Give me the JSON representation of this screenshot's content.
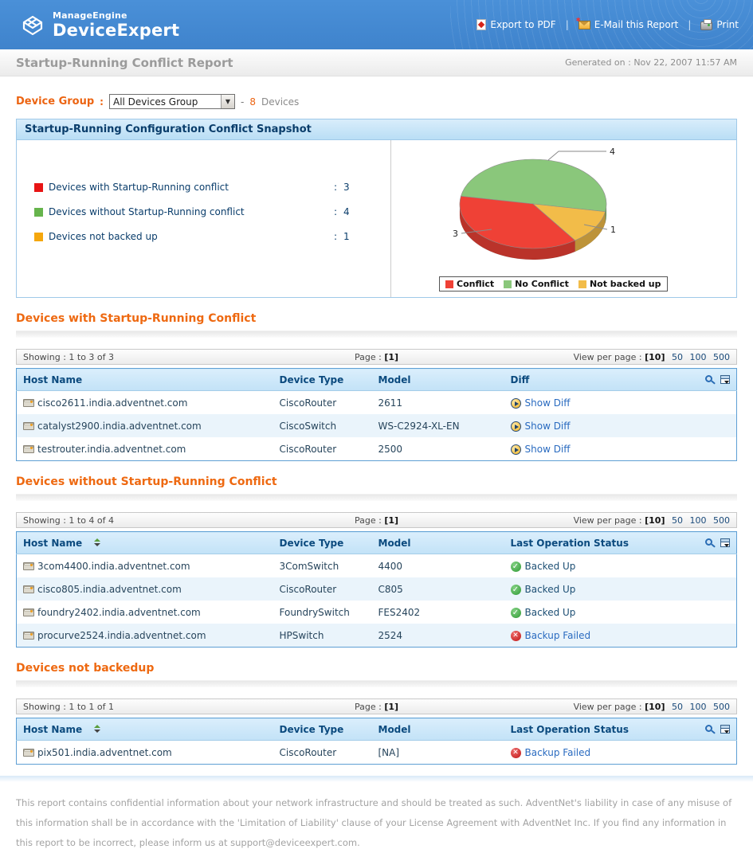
{
  "header": {
    "brand_top": "ManageEngine",
    "brand_name": "DeviceExpert",
    "separator": "|",
    "links": [
      {
        "label": "Export to PDF",
        "icon": "pdf-icon"
      },
      {
        "label": "E-Mail this Report",
        "icon": "email-icon"
      },
      {
        "label": "Print",
        "icon": "print-icon"
      }
    ]
  },
  "titlebar": {
    "title": "Startup-Running Conflict Report",
    "generated": "Generated on : Nov 22, 2007 11:57 AM"
  },
  "device_group": {
    "label": "Device Group",
    "colon": ":",
    "selected": "All Devices Group",
    "dash": "-",
    "count": "8",
    "suffix": "Devices"
  },
  "snapshot": {
    "title": "Startup-Running Configuration Conflict Snapshot",
    "legend": [
      {
        "label": "Devices with Startup-Running conflict",
        "colon": ":",
        "value": "3",
        "color": "#e81414"
      },
      {
        "label": "Devices without Startup-Running conflict",
        "colon": ":",
        "value": "4",
        "color": "#66b44c"
      },
      {
        "label": "Devices not backed up",
        "colon": ":",
        "value": "1",
        "color": "#f5a70d"
      }
    ]
  },
  "chart_data": {
    "type": "pie",
    "labels": [
      "Conflict",
      "No Conflict",
      "Not backed up"
    ],
    "values": [
      3,
      4,
      1
    ],
    "colors": [
      "#ef4136",
      "#8ac77b",
      "#f2bc49"
    ],
    "legend_position": "bottom",
    "effect": "3d",
    "start_angle": -10,
    "draw_order": [
      1,
      0,
      2
    ]
  },
  "sections": [
    {
      "heading": "Devices with Startup-Running Conflict",
      "paging": {
        "showing": "Showing : 1 to 3 of 3",
        "page_label": "Page :",
        "page_current": "[1]",
        "view_label": "View per page :",
        "view_current": "[10]",
        "options": [
          "50",
          "100",
          "500"
        ]
      },
      "columns": [
        "Host Name",
        "Device Type",
        "Model",
        "Diff"
      ],
      "host_sortable": false,
      "rows": [
        {
          "host": "cisco2611.india.adventnet.com",
          "type": "CiscoRouter",
          "model": "2611",
          "status": "Show Diff",
          "icon": "show-diff",
          "link": true
        },
        {
          "host": "catalyst2900.india.adventnet.com",
          "type": "CiscoSwitch",
          "model": "WS-C2924-XL-EN",
          "status": "Show Diff",
          "icon": "show-diff",
          "link": true
        },
        {
          "host": "testrouter.india.adventnet.com",
          "type": "CiscoRouter",
          "model": "2500",
          "status": "Show Diff",
          "icon": "show-diff",
          "link": true
        }
      ]
    },
    {
      "heading": "Devices without Startup-Running Conflict",
      "paging": {
        "showing": "Showing : 1 to 4 of 4",
        "page_label": "Page :",
        "page_current": "[1]",
        "view_label": "View per page :",
        "view_current": "[10]",
        "options": [
          "50",
          "100",
          "500"
        ]
      },
      "columns": [
        "Host Name",
        "Device Type",
        "Model",
        "Last Operation Status"
      ],
      "host_sortable": true,
      "rows": [
        {
          "host": "3com4400.india.adventnet.com",
          "type": "3ComSwitch",
          "model": "4400",
          "status": "Backed Up",
          "icon": "ok",
          "link": false
        },
        {
          "host": "cisco805.india.adventnet.com",
          "type": "CiscoRouter",
          "model": "C805",
          "status": "Backed Up",
          "icon": "ok",
          "link": false
        },
        {
          "host": "foundry2402.india.adventnet.com",
          "type": "FoundrySwitch",
          "model": "FES2402",
          "status": "Backed Up",
          "icon": "ok",
          "link": false
        },
        {
          "host": "procurve2524.india.adventnet.com",
          "type": "HPSwitch",
          "model": "2524",
          "status": "Backup Failed",
          "icon": "fail",
          "link": true
        }
      ]
    },
    {
      "heading": "Devices not backedup",
      "paging": {
        "showing": "Showing : 1 to 1 of 1",
        "page_label": "Page :",
        "page_current": "[1]",
        "view_label": "View per page :",
        "view_current": "[10]",
        "options": [
          "50",
          "100",
          "500"
        ]
      },
      "columns": [
        "Host Name",
        "Device Type",
        "Model",
        "Last Operation Status"
      ],
      "host_sortable": true,
      "rows": [
        {
          "host": "pix501.india.adventnet.com",
          "type": "CiscoRouter",
          "model": "[NA]",
          "status": "Backup Failed",
          "icon": "fail",
          "link": true
        }
      ]
    }
  ],
  "footer": {
    "text": "This report contains confidential information about your network infrastructure and should be treated as such. AdventNet's liability in case of any misuse of this information shall be in accordance with the 'Limitation of Liability' clause of your License Agreement with AdventNet Inc. If you find any information in this report to be incorrect, please inform us at support@deviceexpert.com."
  }
}
